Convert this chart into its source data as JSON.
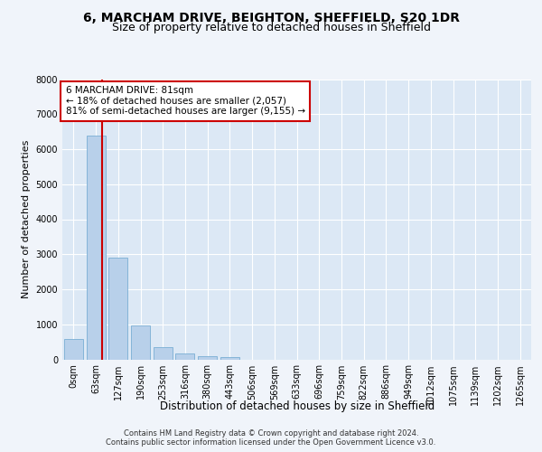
{
  "title1": "6, MARCHAM DRIVE, BEIGHTON, SHEFFIELD, S20 1DR",
  "title2": "Size of property relative to detached houses in Sheffield",
  "xlabel": "Distribution of detached houses by size in Sheffield",
  "ylabel": "Number of detached properties",
  "footer1": "Contains HM Land Registry data © Crown copyright and database right 2024.",
  "footer2": "Contains public sector information licensed under the Open Government Licence v3.0.",
  "bar_labels": [
    "0sqm",
    "63sqm",
    "127sqm",
    "190sqm",
    "253sqm",
    "316sqm",
    "380sqm",
    "443sqm",
    "506sqm",
    "569sqm",
    "633sqm",
    "696sqm",
    "759sqm",
    "822sqm",
    "886sqm",
    "949sqm",
    "1012sqm",
    "1075sqm",
    "1139sqm",
    "1202sqm",
    "1265sqm"
  ],
  "bar_values": [
    580,
    6380,
    2900,
    960,
    340,
    160,
    90,
    60,
    0,
    0,
    0,
    0,
    0,
    0,
    0,
    0,
    0,
    0,
    0,
    0,
    0
  ],
  "bar_color": "#b8d0ea",
  "bar_edge_color": "#7aaed4",
  "vline_x": 1.28,
  "vline_color": "#cc0000",
  "annotation_text": "6 MARCHAM DRIVE: 81sqm\n← 18% of detached houses are smaller (2,057)\n81% of semi-detached houses are larger (9,155) →",
  "annotation_box_color": "#ffffff",
  "annotation_box_edge": "#cc0000",
  "ylim": [
    0,
    8000
  ],
  "yticks": [
    0,
    1000,
    2000,
    3000,
    4000,
    5000,
    6000,
    7000,
    8000
  ],
  "fig_bg_color": "#f0f4fa",
  "plot_bg": "#dce8f5",
  "title1_fontsize": 10,
  "title2_fontsize": 9,
  "xlabel_fontsize": 8.5,
  "ylabel_fontsize": 8,
  "tick_fontsize": 7,
  "annot_fontsize": 7.5
}
